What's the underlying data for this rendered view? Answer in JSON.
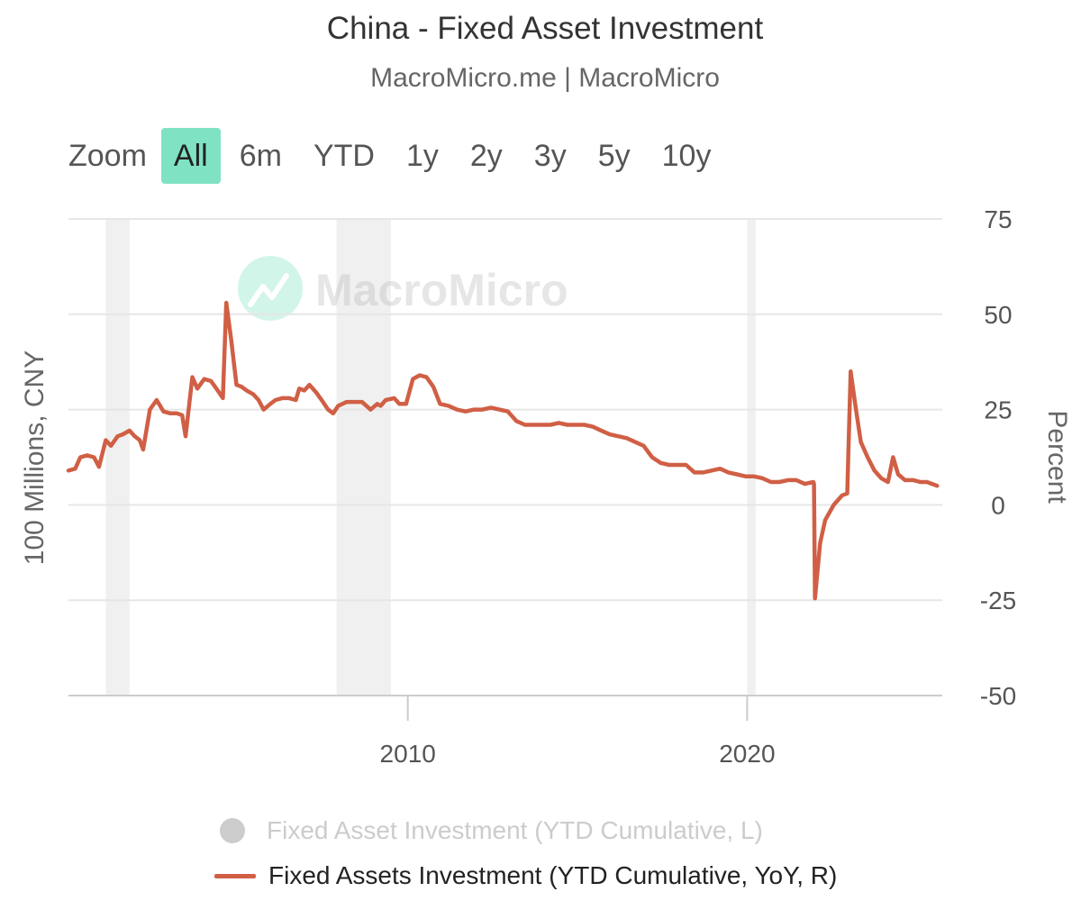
{
  "title": "China - Fixed Asset Investment",
  "subtitle": "MacroMicro.me | MacroMicro",
  "watermark": "MacroMicro",
  "zoom": {
    "label": "Zoom",
    "buttons": [
      "All",
      "6m",
      "YTD",
      "1y",
      "2y",
      "3y",
      "5y",
      "10y"
    ],
    "active": "All"
  },
  "colors": {
    "series": "#d05f45",
    "recession_band": "#f0f0f0",
    "grid": "#e6e6e6",
    "zoom_active": "#7fe3c3",
    "hidden_series": "#cccccc",
    "watermark": "#7fe3c3"
  },
  "chart_data": {
    "type": "line",
    "title": "China - Fixed Asset Investment",
    "subtitle": "MacroMicro.me | MacroMicro",
    "ylabel_left": "100 Millions, CNY",
    "ylabel_right": "Percent",
    "x_range": [
      2000.0,
      2025.75
    ],
    "y_right_range": [
      -50,
      75
    ],
    "y_right_ticks": [
      75,
      50,
      25,
      0,
      -25,
      -50
    ],
    "x_ticks": [
      {
        "value": 2010,
        "label": "2010"
      },
      {
        "value": 2020,
        "label": "2020"
      }
    ],
    "grid": true,
    "recession_bands": [
      [
        2001.1,
        2001.8
      ],
      [
        2007.9,
        2009.5
      ],
      [
        2020.0,
        2020.25
      ]
    ],
    "legend_position": "bottom",
    "series": [
      {
        "name": "Fixed Asset Investment (YTD Cumulative, L)",
        "axis": "left",
        "visible": false,
        "values": []
      },
      {
        "name": "Fixed Assets Investment (YTD Cumulative, YoY, R)",
        "axis": "right",
        "visible": true,
        "points": [
          [
            2000.0,
            9.0
          ],
          [
            2000.2,
            9.5
          ],
          [
            2000.35,
            12.5
          ],
          [
            2000.55,
            13.0
          ],
          [
            2000.75,
            12.5
          ],
          [
            2000.9,
            10.0
          ],
          [
            2001.1,
            17.0
          ],
          [
            2001.25,
            15.5
          ],
          [
            2001.45,
            18.0
          ],
          [
            2001.6,
            18.5
          ],
          [
            2001.8,
            19.5
          ],
          [
            2001.95,
            18.0
          ],
          [
            2002.1,
            17.0
          ],
          [
            2002.2,
            14.5
          ],
          [
            2002.4,
            25.0
          ],
          [
            2002.6,
            27.5
          ],
          [
            2002.8,
            24.5
          ],
          [
            2003.0,
            24.0
          ],
          [
            2003.2,
            24.0
          ],
          [
            2003.35,
            23.5
          ],
          [
            2003.45,
            18.0
          ],
          [
            2003.65,
            33.5
          ],
          [
            2003.8,
            30.5
          ],
          [
            2004.0,
            33.0
          ],
          [
            2004.2,
            32.5
          ],
          [
            2004.4,
            30.0
          ],
          [
            2004.55,
            28.0
          ],
          [
            2004.65,
            53.0
          ],
          [
            2004.8,
            43.0
          ],
          [
            2004.95,
            31.5
          ],
          [
            2005.1,
            31.0
          ],
          [
            2005.25,
            30.0
          ],
          [
            2005.45,
            29.0
          ],
          [
            2005.6,
            27.5
          ],
          [
            2005.75,
            25.0
          ],
          [
            2005.95,
            26.5
          ],
          [
            2006.1,
            27.5
          ],
          [
            2006.3,
            28.0
          ],
          [
            2006.5,
            28.0
          ],
          [
            2006.7,
            27.5
          ],
          [
            2006.8,
            30.5
          ],
          [
            2006.95,
            30.0
          ],
          [
            2007.1,
            31.5
          ],
          [
            2007.3,
            29.5
          ],
          [
            2007.5,
            27.0
          ],
          [
            2007.65,
            25.0
          ],
          [
            2007.8,
            24.0
          ],
          [
            2007.95,
            26.0
          ],
          [
            2008.2,
            27.0
          ],
          [
            2008.5,
            27.0
          ],
          [
            2008.65,
            27.0
          ],
          [
            2008.9,
            25.0
          ],
          [
            2009.1,
            26.5
          ],
          [
            2009.2,
            26.0
          ],
          [
            2009.35,
            27.5
          ],
          [
            2009.6,
            28.0
          ],
          [
            2009.75,
            26.5
          ],
          [
            2009.95,
            26.5
          ],
          [
            2010.15,
            33.0
          ],
          [
            2010.35,
            34.0
          ],
          [
            2010.55,
            33.5
          ],
          [
            2010.75,
            31.0
          ],
          [
            2010.95,
            26.5
          ],
          [
            2011.2,
            26.0
          ],
          [
            2011.45,
            25.0
          ],
          [
            2011.7,
            24.5
          ],
          [
            2011.95,
            25.0
          ],
          [
            2012.2,
            25.0
          ],
          [
            2012.45,
            25.5
          ],
          [
            2012.7,
            25.0
          ],
          [
            2012.95,
            24.5
          ],
          [
            2013.2,
            22.0
          ],
          [
            2013.45,
            21.0
          ],
          [
            2013.7,
            21.0
          ],
          [
            2013.95,
            21.0
          ],
          [
            2014.2,
            21.0
          ],
          [
            2014.45,
            21.5
          ],
          [
            2014.7,
            21.0
          ],
          [
            2014.95,
            21.0
          ],
          [
            2015.2,
            21.0
          ],
          [
            2015.45,
            20.5
          ],
          [
            2015.7,
            19.5
          ],
          [
            2015.95,
            18.5
          ],
          [
            2016.2,
            18.0
          ],
          [
            2016.45,
            17.5
          ],
          [
            2016.7,
            16.5
          ],
          [
            2016.95,
            15.5
          ],
          [
            2017.2,
            12.5
          ],
          [
            2017.45,
            11.0
          ],
          [
            2017.7,
            10.5
          ],
          [
            2017.95,
            10.5
          ],
          [
            2018.2,
            10.5
          ],
          [
            2018.45,
            8.5
          ],
          [
            2018.7,
            8.5
          ],
          [
            2018.95,
            9.0
          ],
          [
            2019.2,
            9.5
          ],
          [
            2019.45,
            8.5
          ],
          [
            2019.7,
            8.0
          ],
          [
            2019.95,
            7.5
          ],
          [
            2020.2,
            7.5
          ],
          [
            2020.45,
            7.0
          ],
          [
            2020.7,
            6.0
          ],
          [
            2020.95,
            6.0
          ],
          [
            2021.2,
            6.5
          ],
          [
            2021.45,
            6.5
          ],
          [
            2021.7,
            5.5
          ],
          [
            2021.95,
            6.0
          ],
          [
            2021.97,
            5.5
          ],
          [
            2022.0,
            -24.5
          ],
          [
            2022.15,
            -10.0
          ],
          [
            2022.3,
            -4.0
          ],
          [
            2022.55,
            0.0
          ],
          [
            2022.8,
            2.5
          ],
          [
            2022.95,
            3.0
          ],
          [
            2023.05,
            35.0
          ],
          [
            2023.2,
            25.5
          ],
          [
            2023.35,
            16.5
          ],
          [
            2023.55,
            12.5
          ],
          [
            2023.75,
            9.0
          ],
          [
            2023.95,
            7.0
          ],
          [
            2024.15,
            6.0
          ],
          [
            2024.3,
            12.5
          ],
          [
            2024.45,
            8.0
          ],
          [
            2024.65,
            6.5
          ],
          [
            2024.9,
            6.5
          ],
          [
            2025.1,
            6.0
          ],
          [
            2025.3,
            6.0
          ],
          [
            2025.45,
            5.5
          ],
          [
            2025.6,
            5.0
          ]
        ]
      }
    ]
  }
}
